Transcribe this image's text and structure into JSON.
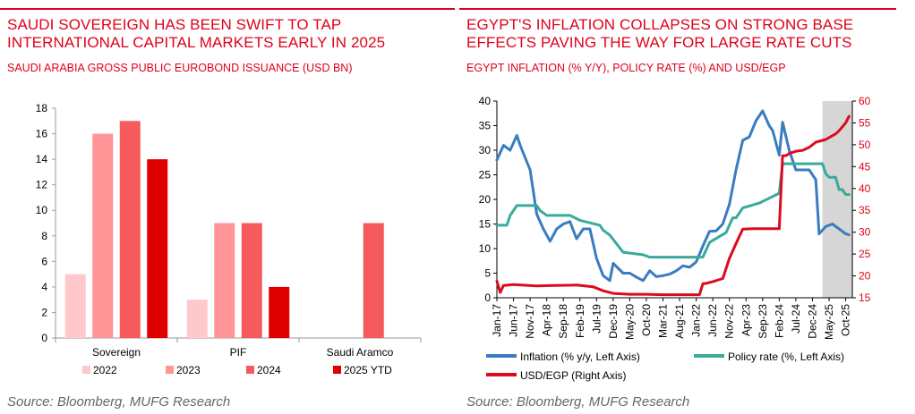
{
  "left": {
    "title_line1": "SAUDI SOVEREIGN HAS BEEN SWIFT TO TAP",
    "title_line2": "INTERNATIONAL CAPITAL MARKETS EARLY IN 2025",
    "subtitle": "SAUDI ARABIA GROSS PUBLIC EUROBOND ISSUANCE (USD BN)",
    "source": "Source: Bloomberg, MUFG Research"
  },
  "right": {
    "title_line1": "EGYPT'S INFLATION COLLAPSES ON STRONG BASE",
    "title_line2": "EFFECTS PAVING THE WAY FOR LARGE RATE CUTS",
    "subtitle": "EGYPT INFLATION (% Y/Y), POLICY RATE (%) AND USD/EGP",
    "source": "Source: Bloomberg, MUFG Research"
  },
  "colors": {
    "accent": "#e0001b"
  },
  "chart_data": [
    {
      "type": "bar",
      "categories": [
        "Sovereign",
        "PIF",
        "Saudi Aramco"
      ],
      "series": [
        {
          "name": "2022",
          "color": "#ffc9cc",
          "values": [
            5,
            3,
            0
          ]
        },
        {
          "name": "2023",
          "color": "#ff9597",
          "values": [
            16,
            9,
            0
          ]
        },
        {
          "name": "2024",
          "color": "#f55a5c",
          "values": [
            17,
            9,
            9
          ]
        },
        {
          "name": "2025 YTD",
          "color": "#e00000",
          "values": [
            14,
            4,
            0
          ]
        }
      ],
      "ylim": [
        0,
        18
      ],
      "yticks": [
        0,
        2,
        4,
        6,
        8,
        10,
        12,
        14,
        16,
        18
      ],
      "grid": false,
      "legend": "bottom"
    },
    {
      "type": "line",
      "xticks": [
        "Jan-17",
        "Jun-17",
        "Nov-17",
        "Apr-18",
        "Sep-18",
        "Feb-19",
        "Jul-19",
        "Dec-19",
        "May-20",
        "Oct-20",
        "Mar-21",
        "Aug-21",
        "Jan-22",
        "Jun-22",
        "Nov-22",
        "Apr-23",
        "Sep-23",
        "Feb-24",
        "Jul-24",
        "Dec-24",
        "May-25",
        "Oct-25"
      ],
      "ylim_left": [
        0,
        40
      ],
      "yticks_left": [
        0,
        5,
        10,
        15,
        20,
        25,
        30,
        35,
        40
      ],
      "ylim_right": [
        15,
        60
      ],
      "yticks_right": [
        15,
        20,
        25,
        30,
        35,
        40,
        45,
        50,
        55,
        60
      ],
      "shaded_region": [
        "Mar-25",
        "Dec-25"
      ],
      "series": [
        {
          "name": "Inflation (% y/y, Left Axis)",
          "axis": "left",
          "color": "#3a7cc0",
          "x": [
            "Jan-17",
            "Mar-17",
            "May-17",
            "Jul-17",
            "Aug-17",
            "Nov-17",
            "Jan-18",
            "Mar-18",
            "May-18",
            "Jul-18",
            "Sep-18",
            "Nov-18",
            "Jan-19",
            "Mar-19",
            "May-19",
            "Jul-19",
            "Sep-19",
            "Nov-19",
            "Dec-19",
            "Mar-20",
            "May-20",
            "Jul-20",
            "Sep-20",
            "Nov-20",
            "Jan-21",
            "Mar-21",
            "May-21",
            "Jul-21",
            "Sep-21",
            "Nov-21",
            "Jan-22",
            "Mar-22",
            "May-22",
            "Jul-22",
            "Sep-22",
            "Nov-22",
            "Jan-23",
            "Mar-23",
            "May-23",
            "Jul-23",
            "Sep-23",
            "Nov-23",
            "Dec-23",
            "Feb-24",
            "Mar-24",
            "May-24",
            "Jul-24",
            "Sep-24",
            "Nov-24",
            "Jan-25",
            "Feb-25",
            "Apr-25",
            "Jun-25",
            "Aug-25",
            "Oct-25",
            "Nov-25"
          ],
          "values": [
            28,
            31,
            30,
            33,
            31,
            26,
            17,
            14,
            11.5,
            14,
            15,
            15.5,
            12,
            14,
            14,
            8,
            4.5,
            3.5,
            7,
            5,
            5,
            4.2,
            3.5,
            5.5,
            4.3,
            4.5,
            4.8,
            5.5,
            6.5,
            6.2,
            7.3,
            10.5,
            13.5,
            13.6,
            15,
            19,
            26,
            32,
            32.7,
            36,
            38,
            35,
            34,
            29,
            35.7,
            30,
            26,
            26,
            26,
            24,
            13,
            14.5,
            15,
            14,
            13,
            12.8
          ]
        },
        {
          "name": "Policy rate (%, Left Axis)",
          "axis": "left",
          "color": "#3aaa9c",
          "x": [
            "Jan-17",
            "Apr-17",
            "May-17",
            "Jul-17",
            "Jan-18",
            "Feb-18",
            "Apr-18",
            "Nov-18",
            "Feb-19",
            "Aug-19",
            "Sep-19",
            "Nov-19",
            "Mar-20",
            "Sep-20",
            "Nov-20",
            "Jan-21",
            "Dec-21",
            "Mar-22",
            "May-22",
            "Oct-22",
            "Dec-22",
            "Jan-23",
            "Mar-23",
            "Aug-23",
            "Feb-24",
            "Mar-24",
            "Apr-24",
            "Dec-24",
            "Mar-25",
            "Apr-25",
            "May-25",
            "Jul-25",
            "Aug-25",
            "Sep-25",
            "Oct-25",
            "Nov-25"
          ],
          "values": [
            14.75,
            14.75,
            16.75,
            18.75,
            18.75,
            17.75,
            16.75,
            16.75,
            15.75,
            14.75,
            13.75,
            12.75,
            9.25,
            8.75,
            8.25,
            8.25,
            8.25,
            8.25,
            11.25,
            13.25,
            16.25,
            16.25,
            18.25,
            19.25,
            21.25,
            27.25,
            27.25,
            27.25,
            27.25,
            25.25,
            24.5,
            24.5,
            22,
            22,
            21,
            21
          ]
        },
        {
          "name": "USD/EGP (Right Axis)",
          "axis": "right",
          "color": "#dd0a1e",
          "x": [
            "Jan-17",
            "Feb-17",
            "Mar-17",
            "Jun-17",
            "Jan-18",
            "Jun-18",
            "Jan-19",
            "Jun-19",
            "Sep-19",
            "Dec-19",
            "May-20",
            "Oct-20",
            "Mar-21",
            "Aug-21",
            "Jan-22",
            "Feb-22",
            "Mar-22",
            "Apr-22",
            "Jun-22",
            "Sep-22",
            "Nov-22",
            "Jan-23",
            "Mar-23",
            "Jun-23",
            "Sep-23",
            "Dec-23",
            "Feb-24",
            "Mar-24",
            "Apr-24",
            "May-24",
            "Jul-24",
            "Sep-24",
            "Nov-24",
            "Jan-25",
            "Apr-25",
            "Jul-25",
            "Aug-25",
            "Oct-25",
            "Nov-25"
          ],
          "values": [
            18.8,
            16.2,
            17.8,
            18,
            17.7,
            17.8,
            17.9,
            17.5,
            16.6,
            16,
            15.8,
            15.8,
            15.7,
            15.7,
            15.7,
            15.7,
            18.2,
            18.3,
            18.7,
            19.4,
            24,
            27.4,
            30.7,
            30.8,
            30.8,
            30.8,
            30.8,
            47.5,
            47.5,
            48,
            48.5,
            48.7,
            49.4,
            50.6,
            51.2,
            52.5,
            53.2,
            55,
            56.5
          ]
        }
      ],
      "grid": false,
      "legend": "bottom"
    }
  ]
}
